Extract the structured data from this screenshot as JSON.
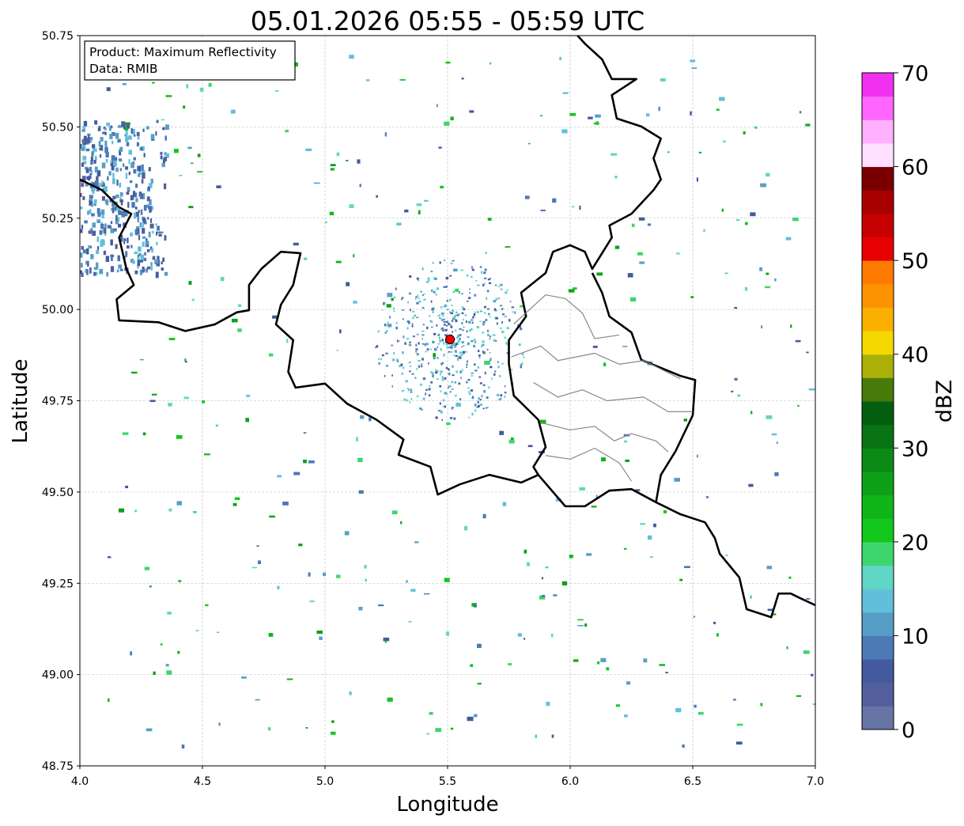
{
  "chart_data": {
    "type": "heatmap",
    "title": "05.01.2026 05:55 - 05:59 UTC",
    "xlabel": "Longitude",
    "ylabel": "Latitude",
    "xlim": [
      4.0,
      7.0
    ],
    "ylim": [
      48.75,
      50.75
    ],
    "xticks": [
      "4.0",
      "4.5",
      "5.0",
      "5.5",
      "6.0",
      "6.5",
      "7.0"
    ],
    "yticks": [
      "48.75",
      "49.00",
      "49.25",
      "49.50",
      "49.75",
      "50.00",
      "50.25",
      "50.50",
      "50.75"
    ],
    "grid": true,
    "info_box": {
      "line1": "Product: Maximum Reflectivity",
      "line2": "Data: RMIB",
      "placement": "top-left"
    },
    "radar_site": {
      "lon": 5.51,
      "lat": 49.918,
      "color": "#ff0000"
    },
    "colorbar": {
      "label": "dBZ",
      "range": [
        0,
        70
      ],
      "step": 2.5,
      "tick_labels": [
        "0",
        "10",
        "20",
        "30",
        "40",
        "50",
        "60",
        "70"
      ],
      "colors": [
        "#6674a6",
        "#525f9c",
        "#445a9e",
        "#4b7ab5",
        "#569ec8",
        "#62bfdb",
        "#60d6c4",
        "#3dd66c",
        "#12c81c",
        "#10b51a",
        "#0ea118",
        "#0b8b16",
        "#087414",
        "#045e10",
        "#477a08",
        "#aab008",
        "#f5d800",
        "#fbb000",
        "#fd9300",
        "#ff7a00",
        "#e70000",
        "#c60000",
        "#a80000",
        "#7a0000",
        "#ffe0ff",
        "#ffb0ff",
        "#ff66ff",
        "#f032f0"
      ]
    },
    "borders": [
      {
        "kind": "national",
        "points": [
          [
            4.0,
            50.356
          ],
          [
            4.09,
            50.327
          ],
          [
            4.16,
            50.28
          ],
          [
            4.21,
            50.262
          ],
          [
            4.16,
            50.197
          ],
          [
            4.19,
            50.111
          ],
          [
            4.22,
            50.067
          ],
          [
            4.15,
            50.028
          ],
          [
            4.16,
            49.97
          ],
          [
            4.32,
            49.965
          ],
          [
            4.43,
            49.941
          ],
          [
            4.55,
            49.959
          ],
          [
            4.64,
            49.992
          ],
          [
            4.69,
            49.998
          ],
          [
            4.69,
            50.067
          ],
          [
            4.74,
            50.111
          ],
          [
            4.82,
            50.158
          ],
          [
            4.9,
            50.154
          ],
          [
            4.87,
            50.067
          ],
          [
            4.82,
            50.013
          ],
          [
            4.8,
            49.959
          ],
          [
            4.87,
            49.916
          ],
          [
            4.85,
            49.829
          ],
          [
            4.88,
            49.786
          ],
          [
            5.0,
            49.797
          ],
          [
            5.09,
            49.742
          ],
          [
            5.21,
            49.698
          ],
          [
            5.32,
            49.644
          ],
          [
            5.3,
            49.602
          ],
          [
            5.43,
            49.569
          ],
          [
            5.46,
            49.493
          ],
          [
            5.55,
            49.521
          ],
          [
            5.67,
            49.547
          ],
          [
            5.8,
            49.526
          ],
          [
            5.87,
            49.547
          ]
        ]
      },
      {
        "kind": "national",
        "points": [
          [
            5.87,
            49.547
          ],
          [
            5.85,
            49.569
          ],
          [
            5.9,
            49.623
          ],
          [
            5.87,
            49.698
          ],
          [
            5.77,
            49.764
          ],
          [
            5.75,
            49.851
          ],
          [
            5.75,
            49.916
          ],
          [
            5.82,
            49.981
          ],
          [
            5.8,
            50.046
          ],
          [
            5.9,
            50.1
          ],
          [
            5.93,
            50.158
          ],
          [
            6.0,
            50.176
          ],
          [
            6.06,
            50.158
          ],
          [
            6.09,
            50.111
          ],
          [
            6.13,
            50.154
          ],
          [
            6.17,
            50.197
          ],
          [
            6.16,
            50.23
          ],
          [
            6.25,
            50.262
          ],
          [
            6.34,
            50.327
          ],
          [
            6.37,
            50.356
          ],
          [
            6.34,
            50.414
          ],
          [
            6.37,
            50.468
          ],
          [
            6.29,
            50.501
          ],
          [
            6.19,
            50.523
          ],
          [
            6.17,
            50.587
          ],
          [
            6.27,
            50.631
          ],
          [
            6.17,
            50.631
          ],
          [
            6.13,
            50.685
          ],
          [
            6.06,
            50.728
          ],
          [
            6.03,
            50.75
          ]
        ]
      },
      {
        "kind": "national",
        "points": [
          [
            5.87,
            49.547
          ],
          [
            5.98,
            49.461
          ],
          [
            6.06,
            49.461
          ],
          [
            6.16,
            49.504
          ],
          [
            6.25,
            49.508
          ],
          [
            6.35,
            49.472
          ],
          [
            6.37,
            49.547
          ],
          [
            6.43,
            49.612
          ],
          [
            6.5,
            49.71
          ],
          [
            6.51,
            49.807
          ],
          [
            6.45,
            49.818
          ],
          [
            6.29,
            49.862
          ],
          [
            6.25,
            49.937
          ],
          [
            6.16,
            49.981
          ],
          [
            6.13,
            50.046
          ],
          [
            6.09,
            50.1
          ]
        ]
      },
      {
        "kind": "national",
        "points": [
          [
            6.35,
            49.472
          ],
          [
            6.45,
            49.439
          ],
          [
            6.55,
            49.417
          ],
          [
            6.59,
            49.374
          ],
          [
            6.61,
            49.331
          ],
          [
            6.69,
            49.266
          ],
          [
            6.72,
            49.179
          ],
          [
            6.82,
            49.157
          ],
          [
            6.85,
            49.222
          ],
          [
            6.9,
            49.222
          ],
          [
            6.93,
            49.212
          ],
          [
            7.0,
            49.19
          ]
        ]
      },
      {
        "kind": "regional",
        "points": [
          [
            5.77,
            49.96
          ],
          [
            5.9,
            50.04
          ],
          [
            5.98,
            50.03
          ],
          [
            6.05,
            49.99
          ],
          [
            6.1,
            49.92
          ],
          [
            6.2,
            49.93
          ]
        ]
      },
      {
        "kind": "regional",
        "points": [
          [
            5.76,
            49.87
          ],
          [
            5.88,
            49.9
          ],
          [
            5.95,
            49.86
          ],
          [
            6.1,
            49.88
          ],
          [
            6.2,
            49.85
          ],
          [
            6.3,
            49.86
          ],
          [
            6.45,
            49.81
          ]
        ]
      },
      {
        "kind": "regional",
        "points": [
          [
            5.85,
            49.8
          ],
          [
            5.95,
            49.76
          ],
          [
            6.05,
            49.78
          ],
          [
            6.15,
            49.75
          ],
          [
            6.3,
            49.76
          ],
          [
            6.4,
            49.72
          ],
          [
            6.5,
            49.72
          ]
        ]
      },
      {
        "kind": "regional",
        "points": [
          [
            5.88,
            49.69
          ],
          [
            6.0,
            49.67
          ],
          [
            6.1,
            49.68
          ],
          [
            6.18,
            49.64
          ],
          [
            6.25,
            49.66
          ],
          [
            6.35,
            49.64
          ],
          [
            6.4,
            49.61
          ]
        ]
      },
      {
        "kind": "regional",
        "points": [
          [
            5.9,
            49.6
          ],
          [
            6.0,
            49.59
          ],
          [
            6.1,
            49.62
          ],
          [
            6.2,
            49.58
          ],
          [
            6.25,
            49.53
          ]
        ]
      }
    ]
  }
}
